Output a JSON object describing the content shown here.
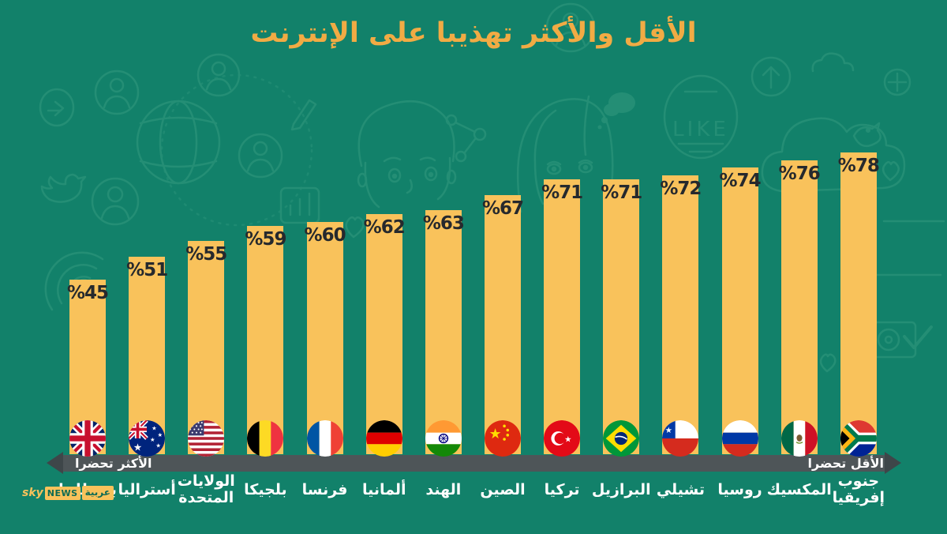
{
  "title": "الأقل والأكثر تهذيبا على الإنترنت",
  "colors": {
    "background": "#12816A",
    "doodle": "#3EA285",
    "bar": "#F9C25B",
    "title": "#F1AB44",
    "value_label": "#26292D",
    "axis_bar": "#4E5558",
    "axis_arrow": "#3E4649",
    "country_label": "#FFFFFF",
    "logo_yellow": "#F9C25B",
    "logo_text": "#0E6B54"
  },
  "chart_data": {
    "type": "bar",
    "title": "الأقل والأكثر تهذيبا على الإنترنت",
    "unit": "%",
    "ylim": [
      0,
      100
    ],
    "orientation": "vertical",
    "order": "ascending left to right",
    "categories": [
      "بريطانيا",
      "أستراليا",
      "الولايات\nالمتحدة",
      "بلجيكا",
      "فرنسا",
      "ألمانيا",
      "الهند",
      "الصين",
      "تركيا",
      "البرازيل",
      "تشيلي",
      "روسيا",
      "المكسيك",
      "جنوب\nإفريقيا"
    ],
    "values": [
      45,
      51,
      55,
      59,
      60,
      62,
      63,
      67,
      71,
      71,
      72,
      74,
      76,
      78
    ],
    "display_values": [
      "%45",
      "%51",
      "%55",
      "%59",
      "%60",
      "%62",
      "%63",
      "%67",
      "%71",
      "%71",
      "%72",
      "%74",
      "%76",
      "%78"
    ],
    "flags": [
      "united-kingdom",
      "australia",
      "united-states",
      "belgium",
      "france",
      "germany",
      "india",
      "china",
      "turkey",
      "brazil",
      "chile",
      "russia",
      "mexico",
      "south-africa"
    ],
    "x_axis": {
      "left_label": "الأكثر تحضرا",
      "right_label": "الأقل تحضرا"
    }
  },
  "logo": {
    "sky": "sky",
    "news": "NEWS",
    "arabia": "عربية"
  },
  "doodles": [
    "share-arrow",
    "user-circle",
    "globe",
    "dotted-orbit",
    "twitter-bird",
    "pencil",
    "bar-chart",
    "signal-arcs",
    "boy-face",
    "molecule",
    "girl-face",
    "thought-bubble",
    "like-badge",
    "arrow-up-circle",
    "cloud",
    "crosshair",
    "cloud-bird",
    "heart",
    "camera-check"
  ]
}
